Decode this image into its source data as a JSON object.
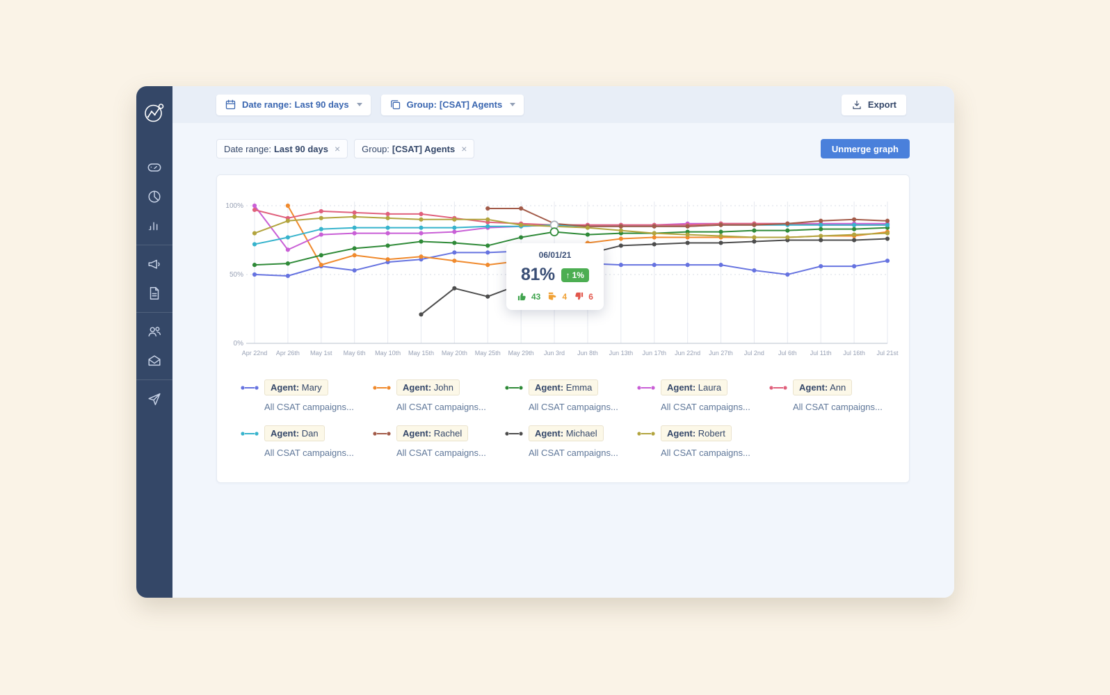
{
  "toolbar": {
    "date_range": {
      "prefix": "Date range:",
      "value": "Last 90 days"
    },
    "group": {
      "prefix": "Group:",
      "value": "[CSAT] Agents"
    },
    "export_label": "Export"
  },
  "filters": {
    "chips": [
      {
        "prefix": "Date range:",
        "value": "Last 90 days",
        "close": "×"
      },
      {
        "prefix": "Group:",
        "value": "[CSAT] Agents",
        "close": "×"
      }
    ],
    "unmerge_label": "Unmerge graph"
  },
  "tooltip": {
    "date": "06/01/21",
    "value": "81%",
    "delta_arrow": "↑",
    "delta": "1%",
    "positive": "43",
    "neutral": "4",
    "negative": "6"
  },
  "sidebar": {
    "icons": [
      "dashboard-gauge-icon",
      "pie-chart-icon",
      "bar-chart-icon",
      "megaphone-icon",
      "document-icon",
      "users-icon",
      "mail-icon",
      "send-icon"
    ]
  },
  "colors": {
    "accent_blue": "#4a80db",
    "sidebar_navy": "#344767",
    "positive_green": "#3fa34d",
    "neutral_orange": "#f0a135",
    "negative_red": "#e2574c"
  },
  "chart_data": {
    "type": "line",
    "title": "",
    "xlabel": "",
    "ylabel": "",
    "ylim": [
      0,
      100
    ],
    "y_ticks": [
      "100%",
      "50%",
      "0%"
    ],
    "grid": true,
    "legend_position": "bottom",
    "categories": [
      "Apr 22nd",
      "Apr 26th",
      "May 1st",
      "May 6th",
      "May 10th",
      "May 15th",
      "May 20th",
      "May 25th",
      "May 29th",
      "Jun 3rd",
      "Jun 8th",
      "Jun 13th",
      "Jun 17th",
      "Jun 22nd",
      "Jun 27th",
      "Jul 2nd",
      "Jul 6th",
      "Jul 11th",
      "Jul 16th",
      "Jul 21st"
    ],
    "series": [
      {
        "name": "Agent: Mary",
        "color": "#6673e0",
        "values": [
          50,
          49,
          56,
          53,
          59,
          61,
          66,
          66,
          67,
          66,
          58,
          57,
          57,
          57,
          57,
          53,
          50,
          56,
          56,
          60
        ]
      },
      {
        "name": "Agent: John",
        "color": "#f08a2d",
        "values": [
          null,
          100,
          57,
          64,
          61,
          63,
          60,
          57,
          60,
          65,
          73,
          76,
          77,
          77,
          77,
          77,
          77,
          78,
          78,
          81
        ]
      },
      {
        "name": "Agent: Emma",
        "color": "#2f8a38",
        "values": [
          57,
          58,
          64,
          69,
          71,
          74,
          73,
          71,
          77,
          81,
          79,
          80,
          80,
          81,
          81,
          82,
          82,
          83,
          83,
          84
        ]
      },
      {
        "name": "Agent: Laura",
        "color": "#c95fd6",
        "values": [
          100,
          68,
          79,
          80,
          80,
          80,
          81,
          84,
          85,
          86,
          86,
          86,
          86,
          87,
          87,
          87,
          87,
          87,
          87,
          87
        ]
      },
      {
        "name": "Agent: Ann",
        "color": "#e0607c",
        "values": [
          97,
          91,
          96,
          95,
          94,
          94,
          91,
          88,
          87,
          86,
          86,
          86,
          86,
          86,
          87,
          87,
          87,
          86,
          86,
          86
        ]
      },
      {
        "name": "Agent: Dan",
        "color": "#36b3cc",
        "values": [
          72,
          77,
          83,
          84,
          84,
          84,
          84,
          85,
          85,
          86,
          85,
          85,
          85,
          85,
          86,
          86,
          86,
          86,
          86,
          86
        ]
      },
      {
        "name": "Agent: Rachel",
        "color": "#a25a48",
        "values": [
          null,
          null,
          null,
          null,
          null,
          null,
          null,
          98,
          98,
          87,
          85,
          85,
          85,
          85,
          86,
          86,
          87,
          89,
          90,
          89
        ]
      },
      {
        "name": "Agent: Michael",
        "color": "#4d4d4d",
        "values": [
          null,
          null,
          null,
          null,
          null,
          21,
          40,
          34,
          43,
          55,
          65,
          71,
          72,
          73,
          73,
          74,
          75,
          75,
          75,
          76
        ]
      },
      {
        "name": "Agent: Robert",
        "color": "#b2a43e",
        "values": [
          80,
          89,
          91,
          92,
          91,
          90,
          90,
          90,
          86,
          85,
          84,
          82,
          80,
          79,
          78,
          77,
          77,
          78,
          79,
          80
        ]
      }
    ],
    "highlights": [
      {
        "x_index": 9,
        "value": 86,
        "ring_color": "#aab0ba"
      },
      {
        "x_index": 9,
        "value": 81,
        "ring_color": "#2f8a38"
      }
    ]
  },
  "legend": {
    "items": [
      {
        "prefix": "Agent:",
        "name": "Mary",
        "color": "#6673e0",
        "sub": "All CSAT campaigns..."
      },
      {
        "prefix": "Agent:",
        "name": "John",
        "color": "#f08a2d",
        "sub": "All CSAT campaigns..."
      },
      {
        "prefix": "Agent:",
        "name": "Emma",
        "color": "#2f8a38",
        "sub": "All CSAT campaigns..."
      },
      {
        "prefix": "Agent:",
        "name": "Laura",
        "color": "#c95fd6",
        "sub": "All CSAT campaigns..."
      },
      {
        "prefix": "Agent:",
        "name": "Ann",
        "color": "#e0607c",
        "sub": "All CSAT campaigns..."
      },
      {
        "prefix": "Agent:",
        "name": "Dan",
        "color": "#36b3cc",
        "sub": "All CSAT campaigns..."
      },
      {
        "prefix": "Agent:",
        "name": "Rachel",
        "color": "#a25a48",
        "sub": "All CSAT campaigns..."
      },
      {
        "prefix": "Agent:",
        "name": "Michael",
        "color": "#4d4d4d",
        "sub": "All CSAT campaigns..."
      },
      {
        "prefix": "Agent:",
        "name": "Robert",
        "color": "#b2a43e",
        "sub": "All CSAT campaigns..."
      }
    ]
  }
}
